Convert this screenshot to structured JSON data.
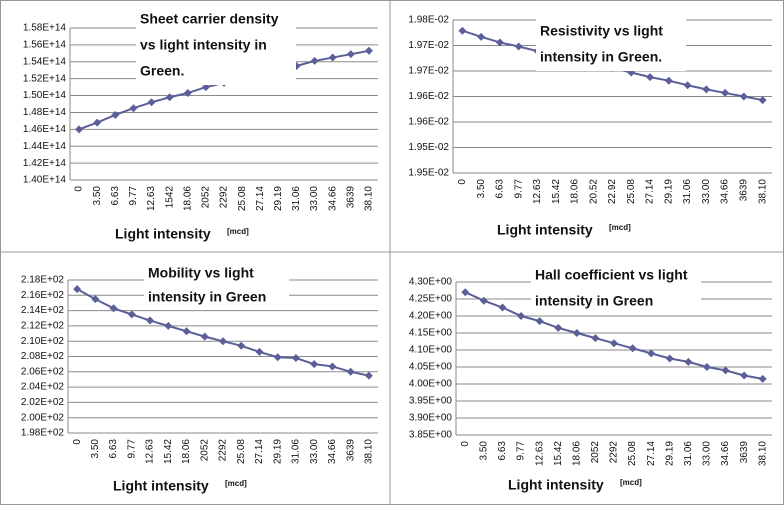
{
  "chart_data": [
    {
      "type": "line",
      "title": [
        "Sheet carrier density",
        "vs light intensity in",
        "Green."
      ],
      "x_label": "Light intensity",
      "x_unit": "[mcd]",
      "categories": [
        "0",
        "3.50",
        "6.63",
        "9.77",
        "12.63",
        "1542",
        "18.06",
        "2052",
        "2292",
        "25.08",
        "27.14",
        "29.19",
        "31.06",
        "33.00",
        "34.66",
        "3639",
        "38.10"
      ],
      "series": [
        {
          "name": "Sheet carrier density",
          "color": "#5b5f97",
          "values": [
            146000000000000.0,
            146800000000000.0,
            147700000000000.0,
            148500000000000.0,
            149200000000000.0,
            149800000000000.0,
            150300000000000.0,
            151000000000000.0,
            151500000000000.0,
            152000000000000.0,
            152600000000000.0,
            153100000000000.0,
            153500000000000.0,
            154100000000000.0,
            154500000000000.0,
            154900000000000.0,
            155300000000000.0
          ]
        }
      ],
      "ylim": [
        140000000000000.0,
        158000000000000.0
      ],
      "yticks": [
        {
          "value": 140000000000000.0,
          "label": "1.40E+14"
        },
        {
          "value": 142000000000000.0,
          "label": "1.42E+14"
        },
        {
          "value": 144000000000000.0,
          "label": "1.44E+14"
        },
        {
          "value": 146000000000000.0,
          "label": "1.46E+14"
        },
        {
          "value": 148000000000000.0,
          "label": "1.48E+14"
        },
        {
          "value": 150000000000000.0,
          "label": "1.50E+14"
        },
        {
          "value": 152000000000000.0,
          "label": "1.52E+14"
        },
        {
          "value": 154000000000000.0,
          "label": "1.54E+14"
        },
        {
          "value": 156000000000000.0,
          "label": "1.56E+14"
        },
        {
          "value": 158000000000000.0,
          "label": "1.58E+14"
        }
      ],
      "grid": true
    },
    {
      "type": "line",
      "title": [
        "Resistivity vs light",
        "intensity in Green."
      ],
      "x_label": "Light intensity",
      "x_unit": "[mcd]",
      "categories": [
        "0",
        "3.50",
        "6.63",
        "9.77",
        "12.63",
        "15.42",
        "18.06",
        "20.52",
        "22.92",
        "25.08",
        "27.14",
        "29.19",
        "31.06",
        "33.00",
        "34.66",
        "3639",
        "38.10"
      ],
      "series": [
        {
          "name": "Resistivity",
          "color": "#5b5f97",
          "values": [
            0.019779,
            0.019767,
            0.019756,
            0.019748,
            0.019739,
            0.01973,
            0.019723,
            0.019714,
            0.019706,
            0.019697,
            0.019688,
            0.019681,
            0.019672,
            0.019664,
            0.019657,
            0.01965,
            0.019643
          ]
        }
      ],
      "ylim": [
        0.0195,
        0.0198
      ],
      "yticks": [
        {
          "value": 0.0195,
          "label": "1.95E-02"
        },
        {
          "value": 0.01955,
          "label": "1.95E-02"
        },
        {
          "value": 0.0196,
          "label": "1.96E-02"
        },
        {
          "value": 0.01965,
          "label": "1.96E-02"
        },
        {
          "value": 0.0197,
          "label": "1.97E-02"
        },
        {
          "value": 0.01975,
          "label": "1.97E-02"
        },
        {
          "value": 0.0198,
          "label": "1.98E-02"
        }
      ],
      "grid": true
    },
    {
      "type": "line",
      "title": [
        "Mobility vs light",
        "intensity in Green"
      ],
      "x_label": "Light intensity",
      "x_unit": "[mcd]",
      "categories": [
        "0",
        "3.50",
        "6.63",
        "9.77",
        "12.63",
        "15.42",
        "18.06",
        "2052",
        "2292",
        "25.08",
        "27.14",
        "29.19",
        "31.06",
        "33.00",
        "34.66",
        "3639",
        "38.10"
      ],
      "series": [
        {
          "name": "Mobility",
          "color": "#5b5f97",
          "values": [
            216.8,
            215.5,
            214.3,
            213.5,
            212.7,
            212.0,
            211.3,
            210.6,
            210.0,
            209.4,
            208.6,
            207.9,
            207.8,
            207.0,
            206.7,
            206.0,
            205.5
          ]
        }
      ],
      "ylim": [
        198,
        218
      ],
      "yticks": [
        {
          "value": 198,
          "label": "1.98E+02"
        },
        {
          "value": 200,
          "label": "2.00E+02"
        },
        {
          "value": 202,
          "label": "2.02E+02"
        },
        {
          "value": 204,
          "label": "2.04E+02"
        },
        {
          "value": 206,
          "label": "2.06E+02"
        },
        {
          "value": 208,
          "label": "2.08E+02"
        },
        {
          "value": 210,
          "label": "2.10E+02"
        },
        {
          "value": 212,
          "label": "2.12E+02"
        },
        {
          "value": 214,
          "label": "2.14E+02"
        },
        {
          "value": 216,
          "label": "2.16E+02"
        },
        {
          "value": 218,
          "label": "2.18E+02"
        }
      ],
      "grid": true
    },
    {
      "type": "line",
      "title": [
        "Hall coefficient vs light",
        "intensity in Green"
      ],
      "x_label": "Light intensity",
      "x_unit": "[mcd]",
      "categories": [
        "0",
        "3.50",
        "6.63",
        "9.77",
        "12.63",
        "15.42",
        "18.06",
        "2052",
        "2292",
        "25.08",
        "27.14",
        "29.19",
        "31.06",
        "33.00",
        "34.66",
        "3639",
        "38.10"
      ],
      "series": [
        {
          "name": "Hall coefficient",
          "color": "#5b5f97",
          "values": [
            4.27,
            4.245,
            4.225,
            4.2,
            4.185,
            4.165,
            4.15,
            4.135,
            4.12,
            4.105,
            4.09,
            4.075,
            4.065,
            4.05,
            4.04,
            4.025,
            4.015
          ]
        }
      ],
      "ylim": [
        3.85,
        4.3
      ],
      "yticks": [
        {
          "value": 3.85,
          "label": "3.85E+00"
        },
        {
          "value": 3.9,
          "label": "3.90E+00"
        },
        {
          "value": 3.95,
          "label": "3.95E+00"
        },
        {
          "value": 4.0,
          "label": "4.00E+00"
        },
        {
          "value": 4.05,
          "label": "4.05E+00"
        },
        {
          "value": 4.1,
          "label": "4.10E+00"
        },
        {
          "value": 4.15,
          "label": "4.15E+00"
        },
        {
          "value": 4.2,
          "label": "4.20E+00"
        },
        {
          "value": 4.25,
          "label": "4.25E+00"
        },
        {
          "value": 4.3,
          "label": "4.30E+00"
        }
      ],
      "grid": true
    }
  ]
}
